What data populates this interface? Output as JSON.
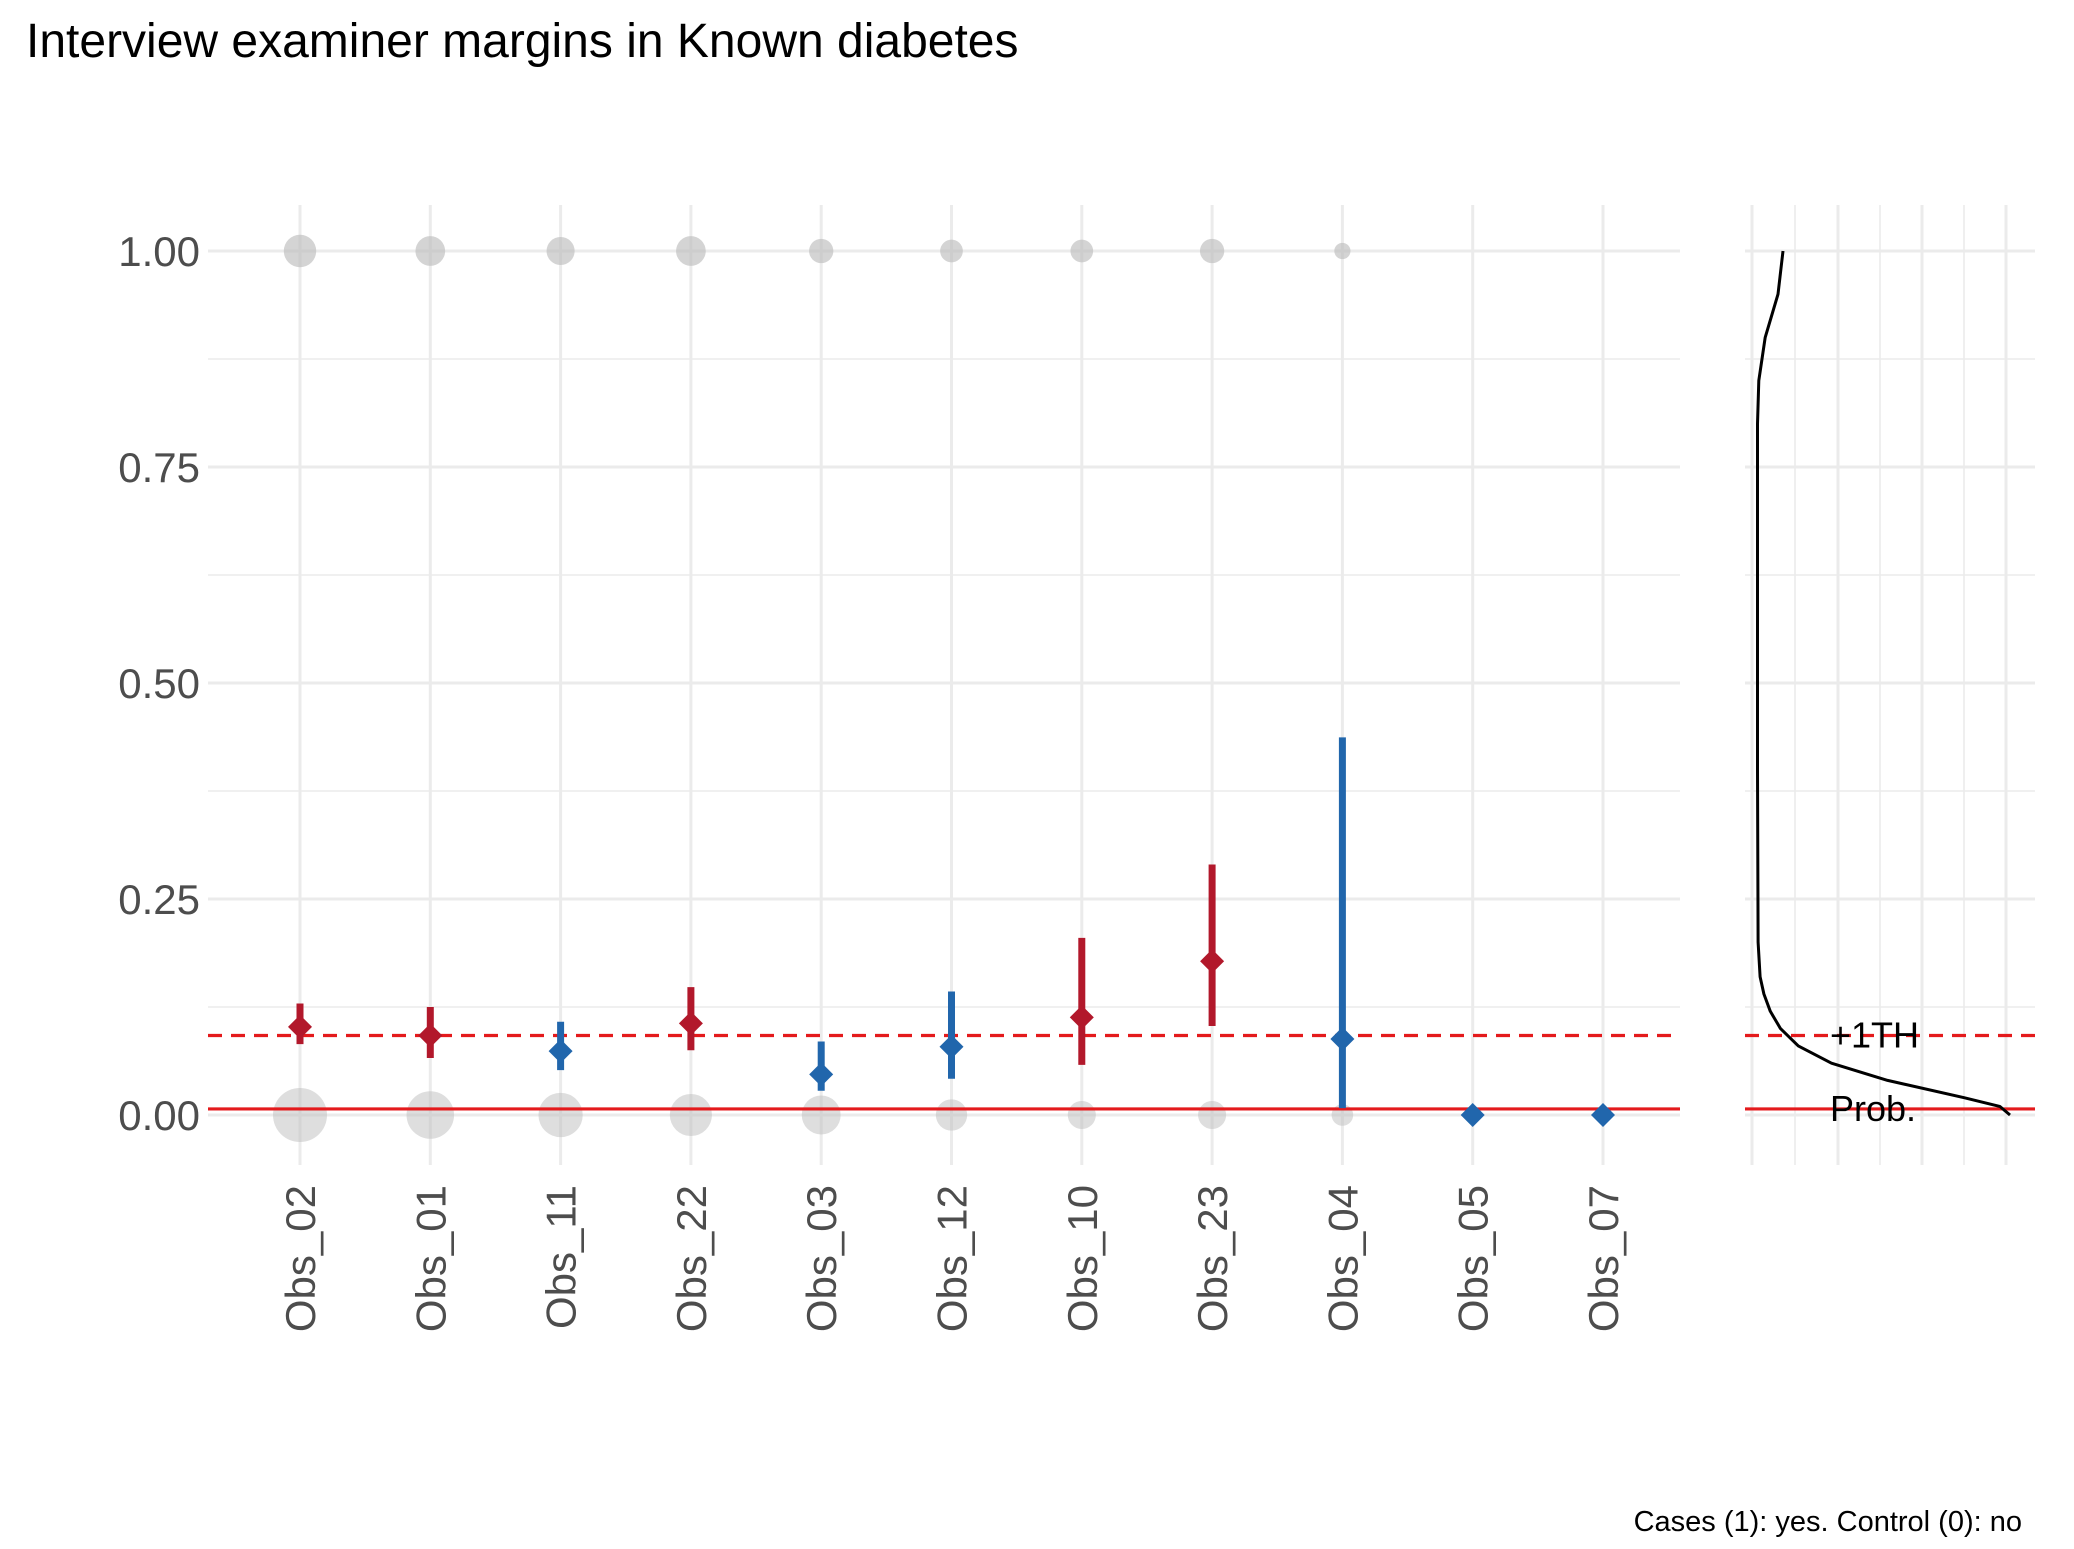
{
  "title": "Interview examiner margins in Known diabetes",
  "caption": "Cases (1): yes. Control (0): no",
  "colors": {
    "above_threshold": "#B2182B",
    "below_threshold": "#2166AC",
    "reference": "#E41A1C",
    "observed": "#BDBDBD",
    "grid": "#EBEBEB",
    "density": "#000000"
  },
  "chart_data": [
    {
      "type": "scatter",
      "subtype": "point-range",
      "title": "Interview examiner margins in Known diabetes",
      "xlabel": "",
      "ylabel": "",
      "ylim": [
        -0.05,
        1.05
      ],
      "yticks": [
        "0.00",
        "0.25",
        "0.50",
        "0.75",
        "1.00"
      ],
      "ytick_values": [
        0,
        0.25,
        0.5,
        0.75,
        1
      ],
      "grid": true,
      "categories": [
        "Obs_02",
        "Obs_01",
        "Obs_11",
        "Obs_22",
        "Obs_03",
        "Obs_12",
        "Obs_10",
        "Obs_23",
        "Obs_04",
        "Obs_05",
        "Obs_07"
      ],
      "estimate": [
        0.102,
        0.092,
        0.074,
        0.106,
        0.047,
        0.079,
        0.113,
        0.178,
        0.088,
        0.0,
        0.0
      ],
      "lower": [
        0.082,
        0.066,
        0.052,
        0.075,
        0.028,
        0.042,
        0.058,
        0.103,
        0.008,
        0.0,
        0.0
      ],
      "upper": [
        0.129,
        0.125,
        0.108,
        0.148,
        0.085,
        0.143,
        0.205,
        0.29,
        0.437,
        0.0,
        0.0
      ],
      "group": [
        "above",
        "above",
        "below",
        "above",
        "below",
        "below",
        "above",
        "above",
        "below",
        "below",
        "below"
      ],
      "observed_cases": {
        "y": 1.0,
        "relative_size": [
          0.6,
          0.55,
          0.52,
          0.55,
          0.45,
          0.42,
          0.42,
          0.45,
          0.3,
          0,
          0
        ]
      },
      "observed_controls": {
        "y": 0.0,
        "relative_size": [
          1.0,
          0.88,
          0.82,
          0.78,
          0.72,
          0.58,
          0.52,
          0.52,
          0.4,
          0,
          0
        ]
      },
      "reference_lines": [
        {
          "y": 0.007,
          "style": "solid",
          "label": "Prob."
        },
        {
          "y": 0.092,
          "style": "dashed",
          "label": "+1TH"
        }
      ]
    },
    {
      "type": "line",
      "subtype": "density",
      "title": "",
      "ylim": [
        -0.05,
        1.05
      ],
      "description_values": {
        "y": [
          0.0,
          0.01,
          0.02,
          0.04,
          0.06,
          0.08,
          0.1,
          0.12,
          0.14,
          0.16,
          0.2,
          0.4,
          0.6,
          0.8,
          0.85,
          0.9,
          0.95,
          1.0
        ],
        "density": [
          1.0,
          0.96,
          0.82,
          0.52,
          0.3,
          0.17,
          0.1,
          0.06,
          0.035,
          0.02,
          0.012,
          0.01,
          0.01,
          0.01,
          0.015,
          0.04,
          0.09,
          0.11
        ]
      },
      "reference_lines": [
        {
          "y": 0.007,
          "style": "solid",
          "label": "Prob."
        },
        {
          "y": 0.092,
          "style": "dashed",
          "label": "+1TH"
        }
      ]
    }
  ]
}
